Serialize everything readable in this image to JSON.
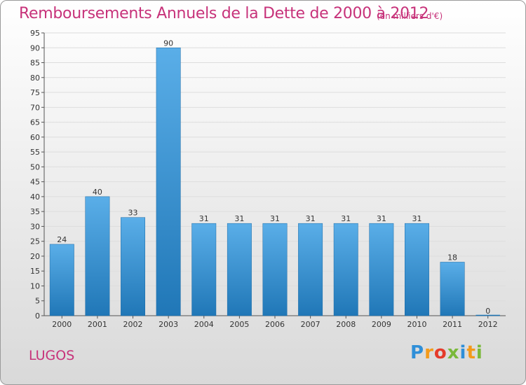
{
  "header": {
    "title": "Remboursements Annuels de la Dette de 2000 à 2012",
    "subtitle": "(en milliers d'€)"
  },
  "footer": {
    "town": "LUGOS",
    "logo_text": "Proxiti"
  },
  "colors": {
    "title": "#c7327a",
    "bar_top": "#5aaee8",
    "bar_bottom": "#2077b7",
    "grid": "#dddddd"
  },
  "chart_data": {
    "type": "bar",
    "title": "Remboursements Annuels de la Dette de 2000 à 2012",
    "subtitle": "(en milliers d'€)",
    "categories": [
      "2000",
      "2001",
      "2002",
      "2003",
      "2004",
      "2005",
      "2006",
      "2007",
      "2008",
      "2009",
      "2010",
      "2011",
      "2012"
    ],
    "values": [
      24,
      40,
      33,
      90,
      31,
      31,
      31,
      31,
      31,
      31,
      31,
      18,
      0
    ],
    "ylim": [
      0,
      95
    ],
    "yticks": [
      0,
      5,
      10,
      15,
      20,
      25,
      30,
      35,
      40,
      45,
      50,
      55,
      60,
      65,
      70,
      75,
      80,
      85,
      90,
      95
    ],
    "grid": true,
    "xlabel": "",
    "ylabel": ""
  }
}
